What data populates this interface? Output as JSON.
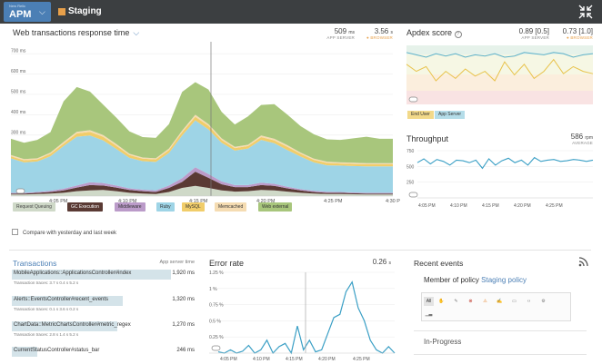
{
  "header": {
    "brand_sub": "New Relic",
    "brand_name": "APM",
    "caret": "⌵",
    "app_name": "Staging",
    "colors": {
      "bar": "#3c3f41",
      "brand": "#4b7fb5",
      "app_swatch": "#e8a04a"
    }
  },
  "web": {
    "title": "Web transactions response time",
    "app_server_value": "509",
    "app_server_unit": "ms",
    "app_server_label": "APP SERVER",
    "browser_value": "3.56",
    "browser_unit": "s",
    "browser_label": "● BROWSER",
    "y_ticks": [
      "700 ms",
      "600 ms",
      "500 ms",
      "400 ms",
      "300 ms",
      "200 ms",
      "100 ms"
    ],
    "x_ticks": [
      "4:05 PM",
      "4:10 PM",
      "4:15 PM",
      "4:20 PM",
      "4:25 PM",
      "4:30 P"
    ],
    "legend": [
      {
        "label": "Request Queuing",
        "color": "#cfd9c8",
        "text": "#444"
      },
      {
        "label": "GC Execution",
        "color": "#5a3a34",
        "text": "#fff"
      },
      {
        "label": "Middleware",
        "color": "#bb9bc9",
        "text": "#333"
      },
      {
        "label": "Ruby",
        "color": "#9ed4e6",
        "text": "#333"
      },
      {
        "label": "MySQL",
        "color": "#f1cd6a",
        "text": "#333"
      },
      {
        "label": "Memcached",
        "color": "#f5dcb2",
        "text": "#333"
      },
      {
        "label": "Web external",
        "color": "#a8c67c",
        "text": "#333"
      }
    ],
    "compare_label": "Compare with yesterday and last week"
  },
  "chart_data": [
    {
      "type": "area",
      "title": "Web transactions response time",
      "ylabel": "ms",
      "ylim": [
        0,
        750
      ],
      "x": [
        "4:02",
        "4:03",
        "4:04",
        "4:05",
        "4:06",
        "4:07",
        "4:08",
        "4:09",
        "4:10",
        "4:11",
        "4:12",
        "4:13",
        "4:14",
        "4:15",
        "4:16",
        "4:17",
        "4:18",
        "4:19",
        "4:20",
        "4:21",
        "4:22",
        "4:23",
        "4:24",
        "4:25",
        "4:26",
        "4:27",
        "4:28",
        "4:29",
        "4:30",
        "4:31"
      ],
      "x_ticks": [
        "4:05 PM",
        "4:10 PM",
        "4:15 PM",
        "4:20 PM",
        "4:25 PM",
        "4:30 P"
      ],
      "stacked": true,
      "series": [
        {
          "name": "Request Queuing",
          "color": "#cfd9c8",
          "values": [
            8,
            8,
            10,
            12,
            16,
            24,
            28,
            30,
            24,
            16,
            12,
            10,
            20,
            40,
            50,
            40,
            28,
            22,
            24,
            30,
            28,
            22,
            16,
            12,
            10,
            10,
            9,
            8,
            8,
            8
          ]
        },
        {
          "name": "GC Execution",
          "color": "#5a3a34",
          "values": [
            4,
            4,
            6,
            8,
            12,
            18,
            26,
            22,
            18,
            14,
            12,
            10,
            20,
            30,
            70,
            50,
            30,
            22,
            20,
            24,
            22,
            16,
            12,
            8,
            6,
            6,
            5,
            4,
            4,
            4
          ]
        },
        {
          "name": "Middleware",
          "color": "#bb9bc9",
          "values": [
            4,
            4,
            4,
            6,
            8,
            10,
            14,
            12,
            10,
            8,
            8,
            8,
            12,
            18,
            22,
            18,
            14,
            10,
            10,
            12,
            10,
            8,
            6,
            6,
            5,
            4,
            4,
            4,
            4,
            4
          ]
        },
        {
          "name": "Ruby",
          "color": "#9ed4e6",
          "values": [
            170,
            150,
            150,
            170,
            210,
            240,
            230,
            210,
            180,
            150,
            140,
            140,
            160,
            210,
            230,
            220,
            190,
            170,
            180,
            210,
            200,
            180,
            160,
            140,
            130,
            130,
            130,
            130,
            130,
            130
          ]
        },
        {
          "name": "MySQL",
          "color": "#f1cd6a",
          "values": [
            10,
            10,
            10,
            12,
            12,
            16,
            18,
            18,
            16,
            14,
            12,
            12,
            14,
            16,
            18,
            18,
            14,
            12,
            12,
            14,
            14,
            16,
            14,
            12,
            12,
            10,
            10,
            10,
            10,
            10
          ]
        },
        {
          "name": "Memcached",
          "color": "#f5dcb2",
          "values": [
            6,
            6,
            6,
            6,
            8,
            8,
            8,
            8,
            8,
            6,
            6,
            6,
            8,
            8,
            10,
            8,
            8,
            6,
            6,
            8,
            8,
            8,
            6,
            6,
            6,
            6,
            6,
            6,
            6,
            6
          ]
        },
        {
          "name": "Web external",
          "color": "#a8c67c",
          "values": [
            80,
            80,
            90,
            100,
            200,
            220,
            190,
            150,
            130,
            110,
            100,
            100,
            120,
            190,
            160,
            170,
            130,
            110,
            140,
            150,
            170,
            150,
            130,
            120,
            110,
            110,
            120,
            130,
            120,
            120
          ]
        }
      ]
    },
    {
      "type": "line",
      "title": "Apdex score",
      "ylim": [
        0.5,
        1.0
      ],
      "x_ticks": [],
      "series": [
        {
          "name": "App Server",
          "color": "#5bb0c9",
          "values": [
            0.94,
            0.92,
            0.9,
            0.93,
            0.91,
            0.93,
            0.9,
            0.92,
            0.91,
            0.93,
            0.9,
            0.91,
            0.94,
            0.93,
            0.92,
            0.94,
            0.93,
            0.9,
            0.92,
            0.93
          ]
        },
        {
          "name": "End User",
          "color": "#e8c24a",
          "values": [
            0.84,
            0.78,
            0.82,
            0.7,
            0.78,
            0.72,
            0.8,
            0.74,
            0.78,
            0.7,
            0.86,
            0.75,
            0.84,
            0.72,
            0.78,
            0.88,
            0.76,
            0.82,
            0.78,
            0.76
          ]
        }
      ]
    },
    {
      "type": "line",
      "title": "Throughput",
      "ylabel": "rpm",
      "ylim": [
        0,
        750
      ],
      "y_ticks": [
        "750",
        "500",
        "250"
      ],
      "x_ticks": [
        "4:05 PM",
        "4:10 PM",
        "4:15 PM",
        "4:20 PM",
        "4:25 PM"
      ],
      "series": [
        {
          "name": "Throughput",
          "color": "#3a9fc5",
          "values": [
            560,
            620,
            540,
            610,
            580,
            520,
            600,
            590,
            560,
            600,
            470,
            620,
            520,
            590,
            630,
            560,
            600,
            520,
            640,
            580,
            600,
            610,
            580,
            590,
            610,
            600,
            580,
            600
          ]
        }
      ]
    },
    {
      "type": "line",
      "title": "Error rate",
      "ylabel": "%",
      "ylim": [
        0,
        1.25
      ],
      "y_ticks": [
        "1.25 %",
        "1 %",
        "0.75 %",
        "0.5 %",
        "0.25 %"
      ],
      "x_ticks": [
        "4:05 PM",
        "4:10 PM",
        "4:15 PM",
        "4:20 PM",
        "4:25 PM"
      ],
      "series": [
        {
          "name": "Error rate",
          "color": "#3a9fc5",
          "values": [
            0.02,
            0.0,
            0.05,
            0.0,
            0.03,
            0.12,
            0.0,
            0.05,
            0.2,
            0.0,
            0.1,
            0.15,
            0.0,
            0.42,
            0.05,
            0.2,
            0.02,
            0.05,
            0.3,
            0.55,
            0.6,
            0.95,
            1.1,
            0.7,
            0.5,
            0.2,
            0.05,
            0.0,
            0.1,
            0.0
          ]
        }
      ]
    }
  ],
  "apdex": {
    "title": "Apdex score",
    "help_icon": "?",
    "app_server_value": "0.89 [0.5]",
    "app_server_label": "APP SERVER",
    "browser_value": "0.73 [1.0]",
    "browser_label": "● BROWSER",
    "legend_end_user": "End User",
    "legend_app_server": "App Server"
  },
  "throughput": {
    "title": "Throughput",
    "value": "586",
    "unit": "rpm",
    "label": "AVERAGE",
    "y_ticks": [
      "750",
      "500",
      "250"
    ],
    "x_ticks": [
      "4:05 PM",
      "4:10 PM",
      "4:15 PM",
      "4:20 PM",
      "4:25 PM"
    ]
  },
  "transactions": {
    "title": "Transactions",
    "subtitle": "App server time",
    "rows": [
      {
        "name": "MobileApplications::ApplicationsController#index",
        "value": "1,920 ms",
        "traces": "Transaction traces:  3.7 s   0.4 s   5.2 s",
        "fill": 0.86
      },
      {
        "name": "Alerts::EventsController#recent_events",
        "value": "1,320 ms",
        "traces": "Transaction traces:  0.1 s   3.6 s   0.2 s",
        "fill": 0.6
      },
      {
        "name": "ChartData::MetricChartsController#metric_regex",
        "value": "1,270 ms",
        "traces": "Transaction traces:  2.8 s   1.4 s   5.2 s",
        "fill": 0.57
      },
      {
        "name": "CurrentStatusController#status_bar",
        "value": "246 ms",
        "traces": "",
        "fill": 0.14
      }
    ]
  },
  "error_rate": {
    "title": "Error rate",
    "value": "0.26",
    "unit": "s",
    "y_ticks": [
      "1.25 %",
      "1 %",
      "0.75 %",
      "0.5 %",
      "0.25 %"
    ],
    "x_ticks": [
      "4:05 PM",
      "4:10 PM",
      "4:15 PM",
      "4:20 PM",
      "4:25 PM"
    ]
  },
  "recent_events": {
    "title": "Recent events",
    "policy_prefix": "Member of policy",
    "policy_link": "Staging policy",
    "filter_all": "All",
    "in_progress": "In-Progress"
  }
}
